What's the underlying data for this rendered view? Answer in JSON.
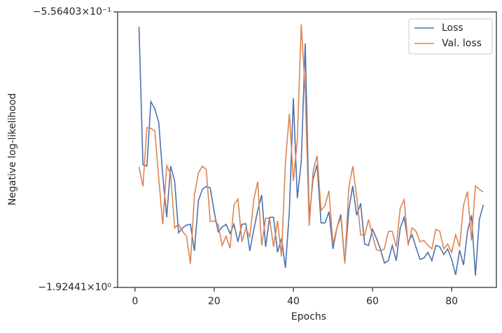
{
  "chart_data": {
    "type": "line",
    "x_label": "Epochs",
    "y_label": "Negative log-likelihood",
    "x": [
      1,
      2,
      3,
      4,
      5,
      6,
      7,
      8,
      9,
      10,
      11,
      12,
      13,
      14,
      15,
      16,
      17,
      18,
      19,
      20,
      21,
      22,
      23,
      24,
      25,
      26,
      27,
      28,
      29,
      30,
      31,
      32,
      33,
      34,
      35,
      36,
      37,
      38,
      39,
      40,
      41,
      42,
      43,
      44,
      45,
      46,
      47,
      48,
      49,
      50,
      51,
      52,
      53,
      54,
      55,
      56,
      57,
      58,
      59,
      60,
      61,
      62,
      63,
      64,
      65,
      66,
      67,
      68,
      69,
      70,
      71,
      72,
      73,
      74,
      75,
      76,
      77,
      78,
      79,
      80,
      81,
      82,
      83,
      84,
      85,
      86,
      87,
      88
    ],
    "series": [
      {
        "name": "Loss",
        "color": "#4c72b0",
        "values": [
          -0.63,
          -1.315,
          -1.322,
          -1.002,
          -1.037,
          -1.106,
          -1.368,
          -1.576,
          -1.322,
          -1.395,
          -1.653,
          -1.629,
          -1.615,
          -1.611,
          -1.743,
          -1.496,
          -1.437,
          -1.423,
          -1.43,
          -1.549,
          -1.649,
          -1.625,
          -1.611,
          -1.656,
          -1.611,
          -1.698,
          -1.611,
          -1.608,
          -1.743,
          -1.639,
          -1.542,
          -1.465,
          -1.723,
          -1.576,
          -1.576,
          -1.75,
          -1.681,
          -1.827,
          -1.542,
          -0.985,
          -1.482,
          -1.298,
          -0.713,
          -1.576,
          -1.385,
          -1.315,
          -1.604,
          -1.604,
          -1.549,
          -1.733,
          -1.629,
          -1.562,
          -1.803,
          -1.542,
          -1.42,
          -1.566,
          -1.507,
          -1.709,
          -1.716,
          -1.636,
          -1.681,
          -1.733,
          -1.803,
          -1.792,
          -1.716,
          -1.792,
          -1.629,
          -1.576,
          -1.702,
          -1.663,
          -1.726,
          -1.785,
          -1.778,
          -1.75,
          -1.792,
          -1.716,
          -1.723,
          -1.761,
          -1.733,
          -1.785,
          -1.862,
          -1.74,
          -1.813,
          -1.646,
          -1.566,
          -1.865,
          -1.587,
          -1.514
        ]
      },
      {
        "name": "Val. loss",
        "color": "#dd8452",
        "values": [
          -1.326,
          -1.423,
          -1.131,
          -1.134,
          -1.148,
          -1.385,
          -1.611,
          -1.319,
          -1.361,
          -1.629,
          -1.611,
          -1.646,
          -1.67,
          -1.806,
          -1.465,
          -1.357,
          -1.322,
          -1.34,
          -1.597,
          -1.594,
          -1.611,
          -1.716,
          -1.67,
          -1.73,
          -1.514,
          -1.486,
          -1.698,
          -1.629,
          -1.674,
          -1.489,
          -1.399,
          -1.716,
          -1.58,
          -1.583,
          -1.723,
          -1.594,
          -1.771,
          -1.305,
          -1.061,
          -1.395,
          -1.193,
          -0.619,
          -0.95,
          -1.618,
          -1.347,
          -1.27,
          -1.542,
          -1.517,
          -1.444,
          -1.709,
          -1.629,
          -1.576,
          -1.806,
          -1.43,
          -1.322,
          -1.472,
          -1.663,
          -1.667,
          -1.587,
          -1.667,
          -1.737,
          -1.743,
          -1.733,
          -1.646,
          -1.646,
          -1.723,
          -1.531,
          -1.489,
          -1.716,
          -1.629,
          -1.646,
          -1.698,
          -1.691,
          -1.716,
          -1.733,
          -1.636,
          -1.646,
          -1.733,
          -1.709,
          -1.75,
          -1.663,
          -1.723,
          -1.517,
          -1.448,
          -1.691,
          -1.42,
          -1.437,
          -1.451
        ]
      }
    ],
    "xlim": [
      -4.4,
      91.3
    ],
    "xticks": [
      0,
      20,
      40,
      60,
      80
    ],
    "ylim": [
      -1.92441,
      -0.556403
    ],
    "yticks": [
      {
        "value": -1.92441,
        "label": "−1.92441×10⁰"
      },
      {
        "value": -0.556403,
        "label": "−5.56403×10⁻¹"
      }
    ],
    "legend": "upper right"
  }
}
